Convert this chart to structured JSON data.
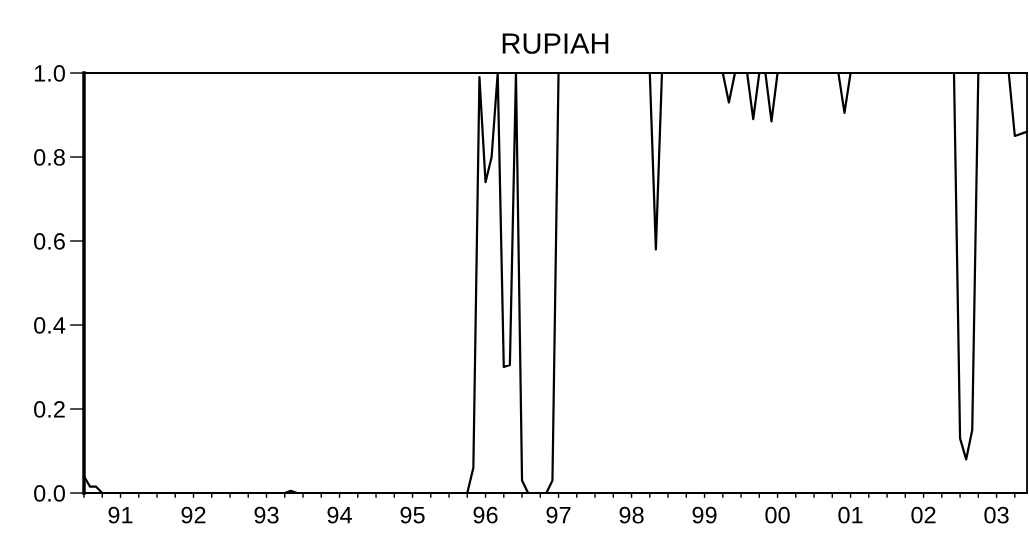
{
  "chart_data": {
    "type": "line",
    "title": "RUPIAH",
    "x": [
      "1991-01",
      "1991-02",
      "1991-03",
      "1991-04",
      "1991-05",
      "1991-06",
      "1991-07",
      "1991-08",
      "1991-09",
      "1991-10",
      "1991-11",
      "1991-12",
      "1992-01",
      "1992-02",
      "1992-03",
      "1992-04",
      "1992-05",
      "1992-06",
      "1992-07",
      "1992-08",
      "1992-09",
      "1992-10",
      "1992-11",
      "1992-12",
      "1993-01",
      "1993-02",
      "1993-03",
      "1993-04",
      "1993-05",
      "1993-06",
      "1993-07",
      "1993-08",
      "1993-09",
      "1993-10",
      "1993-11",
      "1993-12",
      "1994-01",
      "1994-02",
      "1994-03",
      "1994-04",
      "1994-05",
      "1994-06",
      "1994-07",
      "1994-08",
      "1994-09",
      "1994-10",
      "1994-11",
      "1994-12",
      "1995-01",
      "1995-02",
      "1995-03",
      "1995-04",
      "1995-05",
      "1995-06",
      "1995-07",
      "1995-08",
      "1995-09",
      "1995-10",
      "1995-11",
      "1995-12",
      "1996-01",
      "1996-02",
      "1996-03",
      "1996-04",
      "1996-05",
      "1996-06",
      "1996-07",
      "1996-08",
      "1996-09",
      "1996-10",
      "1996-11",
      "1996-12",
      "1997-01",
      "1997-02",
      "1997-03",
      "1997-04",
      "1997-05",
      "1997-06",
      "1997-07",
      "1997-08",
      "1997-09",
      "1997-10",
      "1997-11",
      "1997-12",
      "1998-01",
      "1998-02",
      "1998-03",
      "1998-04",
      "1998-05",
      "1998-06",
      "1998-07",
      "1998-08",
      "1998-09",
      "1998-10",
      "1998-11",
      "1998-12",
      "1999-01",
      "1999-02",
      "1999-03",
      "1999-04",
      "1999-05",
      "1999-06",
      "1999-07",
      "1999-08",
      "1999-09",
      "1999-10",
      "1999-11",
      "1999-12",
      "2000-01",
      "2000-02",
      "2000-03",
      "2000-04",
      "2000-05",
      "2000-06",
      "2000-07",
      "2000-08",
      "2000-09",
      "2000-10",
      "2000-11",
      "2000-12",
      "2001-01",
      "2001-02",
      "2001-03",
      "2001-04",
      "2001-05",
      "2001-06",
      "2001-07",
      "2001-08",
      "2001-09",
      "2001-10",
      "2001-11",
      "2001-12",
      "2002-01",
      "2002-02",
      "2002-03",
      "2002-04",
      "2002-05",
      "2002-06",
      "2002-07",
      "2002-08",
      "2002-09",
      "2002-10",
      "2002-11",
      "2002-12",
      "2003-01",
      "2003-02",
      "2003-03",
      "2003-04",
      "2003-05",
      "2003-06",
      "2003-07",
      "2003-08",
      "2003-09",
      "2003-10",
      "2003-11",
      "2003-12"
    ],
    "series": [
      {
        "color": "#000000",
        "values": [
          0.04,
          0.015,
          0.015,
          0,
          0,
          0,
          0,
          0,
          0,
          0,
          0,
          0,
          0,
          0,
          0,
          0,
          0,
          0,
          0,
          0,
          0,
          0,
          0,
          0,
          0,
          0,
          0,
          0,
          0,
          0,
          0,
          0,
          0,
          0,
          0.005,
          0,
          0,
          0,
          0,
          0,
          0,
          0,
          0,
          0,
          0,
          0,
          0,
          0,
          0,
          0,
          0,
          0,
          0,
          0,
          0,
          0,
          0,
          0,
          0,
          0,
          0,
          0,
          0,
          0,
          0.06,
          0.99,
          0.74,
          0.8,
          1,
          0.3,
          0.305,
          1,
          0.03,
          0,
          0,
          0,
          0,
          0.03,
          1,
          1,
          1,
          1,
          1,
          1,
          1,
          1,
          1,
          1,
          1,
          1,
          1,
          1,
          1,
          1,
          0.58,
          1,
          1,
          1,
          1,
          1,
          1,
          1,
          1,
          1,
          1,
          1,
          0.93,
          1,
          1,
          1,
          0.89,
          1,
          1,
          0.885,
          1,
          1,
          1,
          1,
          1,
          1,
          1,
          1,
          1,
          1,
          1,
          0.905,
          1,
          1,
          1,
          1,
          1,
          1,
          1,
          1,
          1,
          1,
          1,
          1,
          1,
          1,
          1,
          1,
          1,
          1,
          0.13,
          0.08,
          0.15,
          1,
          1,
          1,
          1,
          1,
          1,
          0.85,
          0.855,
          0.86
        ]
      }
    ],
    "xlim": [
      "1991-01",
      "2003-12"
    ],
    "xticks": [
      {
        "value": "1991-01",
        "label": null
      },
      {
        "value": "1991-04",
        "label": null
      },
      {
        "value": "1991-07",
        "label": "91"
      },
      {
        "value": "1991-10",
        "label": null
      },
      {
        "value": "1992-01",
        "label": null
      },
      {
        "value": "1992-04",
        "label": null
      },
      {
        "value": "1992-07",
        "label": "92"
      },
      {
        "value": "1992-10",
        "label": null
      },
      {
        "value": "1993-01",
        "label": null
      },
      {
        "value": "1993-04",
        "label": null
      },
      {
        "value": "1993-07",
        "label": "93"
      },
      {
        "value": "1993-10",
        "label": null
      },
      {
        "value": "1994-01",
        "label": null
      },
      {
        "value": "1994-04",
        "label": null
      },
      {
        "value": "1994-07",
        "label": "94"
      },
      {
        "value": "1994-10",
        "label": null
      },
      {
        "value": "1995-01",
        "label": null
      },
      {
        "value": "1995-04",
        "label": null
      },
      {
        "value": "1995-07",
        "label": "95"
      },
      {
        "value": "1995-10",
        "label": null
      },
      {
        "value": "1996-01",
        "label": null
      },
      {
        "value": "1996-04",
        "label": null
      },
      {
        "value": "1996-07",
        "label": "96"
      },
      {
        "value": "1996-10",
        "label": null
      },
      {
        "value": "1997-01",
        "label": null
      },
      {
        "value": "1997-04",
        "label": null
      },
      {
        "value": "1997-07",
        "label": "97"
      },
      {
        "value": "1997-10",
        "label": null
      },
      {
        "value": "1998-01",
        "label": null
      },
      {
        "value": "1998-04",
        "label": null
      },
      {
        "value": "1998-07",
        "label": "98"
      },
      {
        "value": "1998-10",
        "label": null
      },
      {
        "value": "1999-01",
        "label": null
      },
      {
        "value": "1999-04",
        "label": null
      },
      {
        "value": "1999-07",
        "label": "99"
      },
      {
        "value": "1999-10",
        "label": null
      },
      {
        "value": "2000-01",
        "label": null
      },
      {
        "value": "2000-04",
        "label": null
      },
      {
        "value": "2000-07",
        "label": "00"
      },
      {
        "value": "2000-10",
        "label": null
      },
      {
        "value": "2001-01",
        "label": null
      },
      {
        "value": "2001-04",
        "label": null
      },
      {
        "value": "2001-07",
        "label": "01"
      },
      {
        "value": "2001-10",
        "label": null
      },
      {
        "value": "2002-01",
        "label": null
      },
      {
        "value": "2002-04",
        "label": null
      },
      {
        "value": "2002-07",
        "label": "02"
      },
      {
        "value": "2002-10",
        "label": null
      },
      {
        "value": "2003-01",
        "label": null
      },
      {
        "value": "2003-04",
        "label": null
      },
      {
        "value": "2003-07",
        "label": "03"
      },
      {
        "value": "2003-10",
        "label": null
      }
    ],
    "ylim": [
      0,
      1
    ],
    "yticks": [
      {
        "value": 0,
        "label": "0.0"
      },
      0.2,
      0.4,
      0.6,
      0.8,
      {
        "value": 1,
        "label": "1.0"
      }
    ],
    "grid": false,
    "marker": "none",
    "line_style": "solid"
  }
}
